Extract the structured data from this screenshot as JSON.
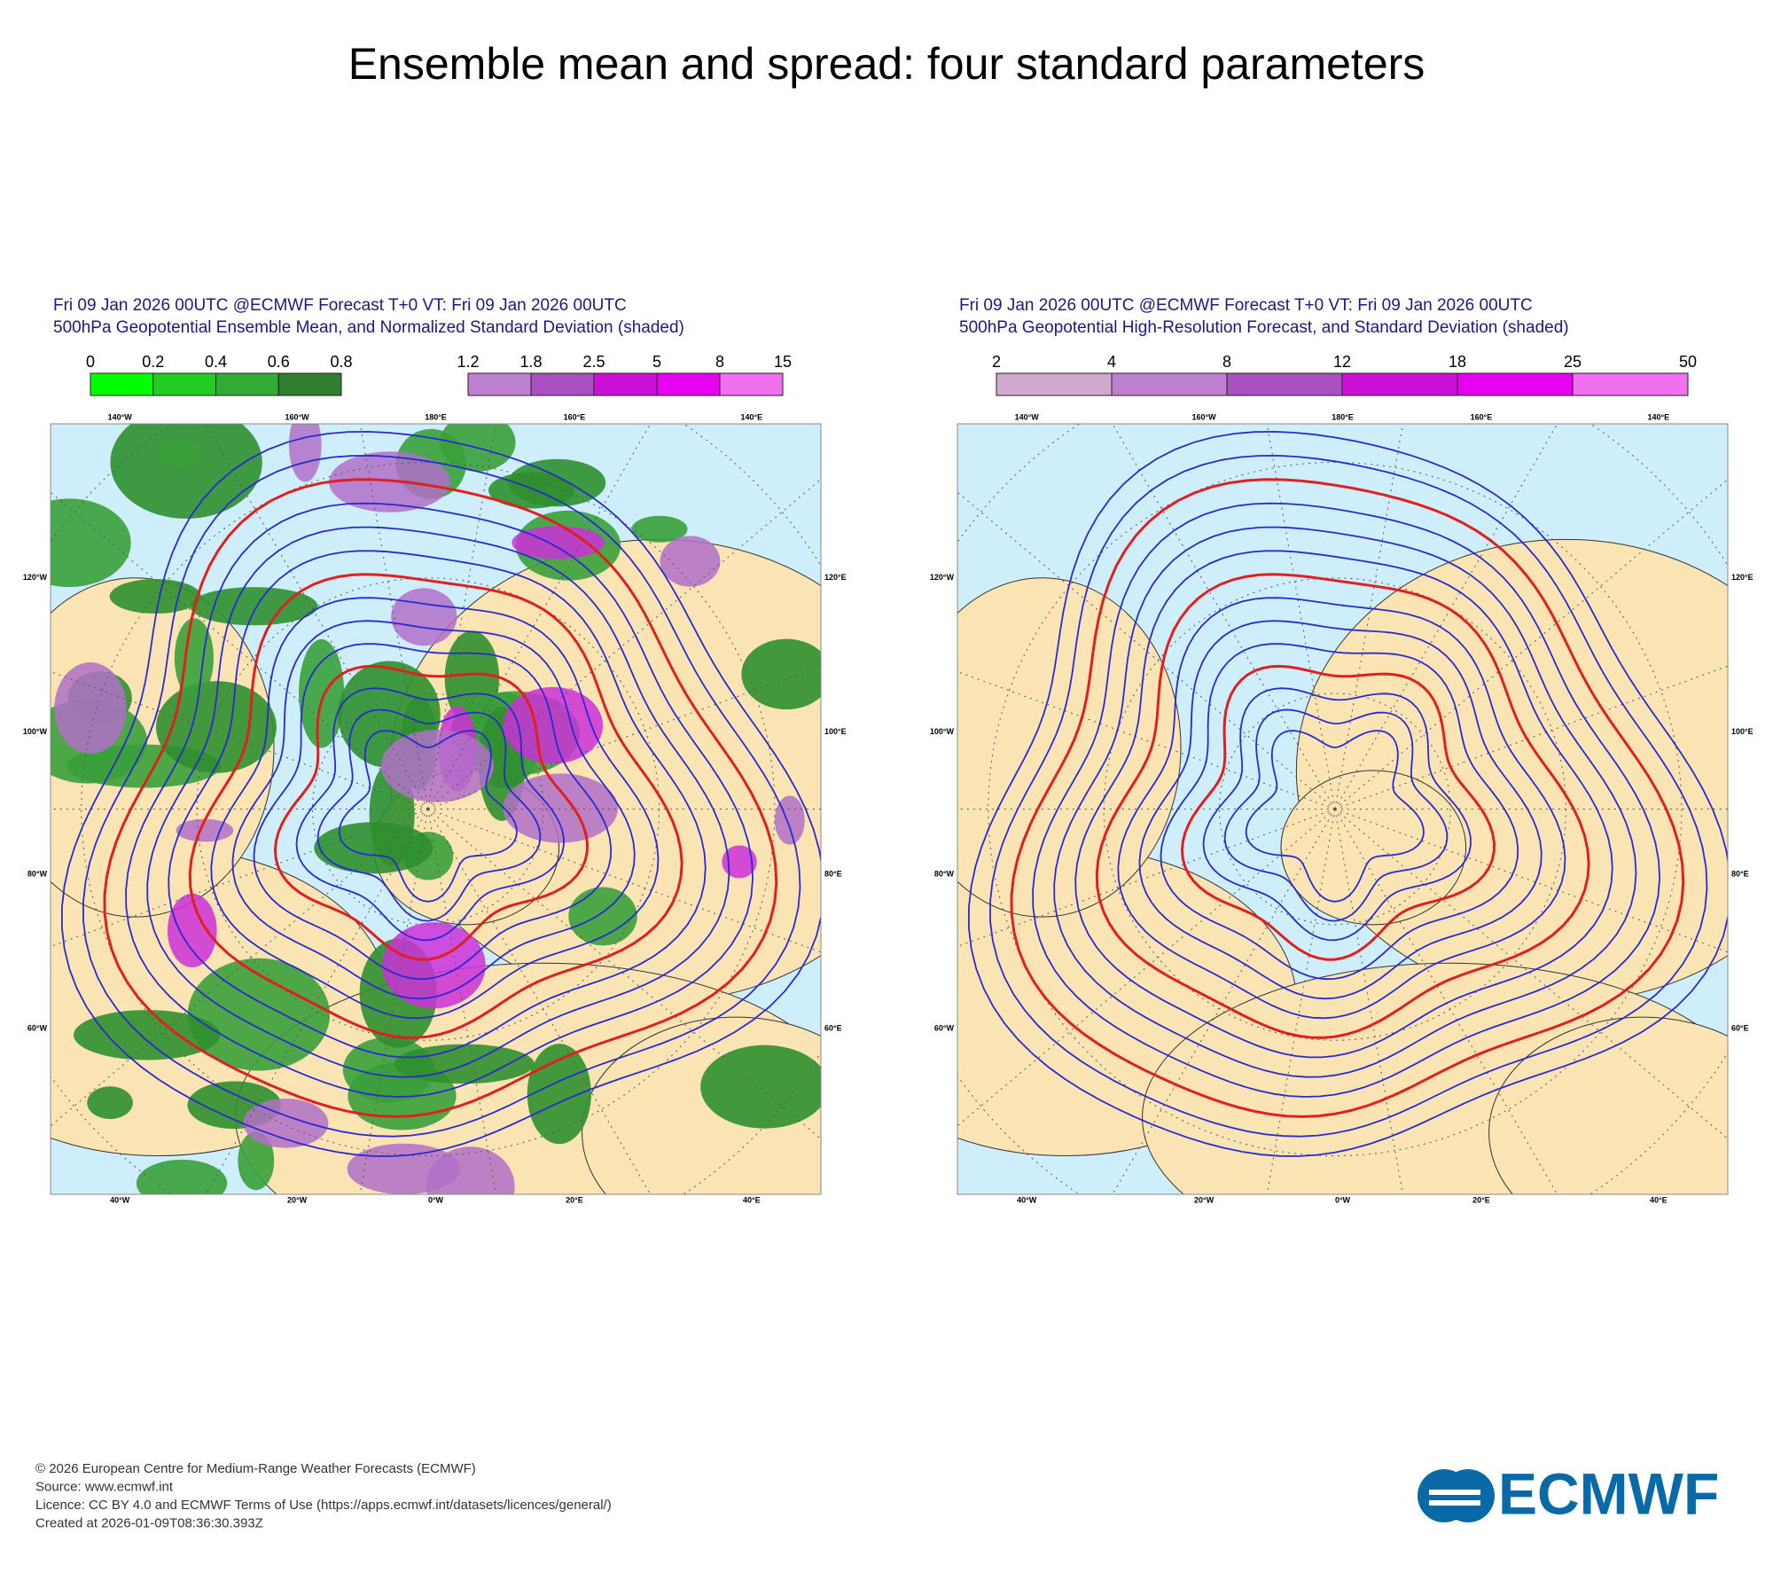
{
  "title": "Ensemble mean and spread: four standard parameters",
  "panels": [
    {
      "header": [
        "Fri 09 Jan 2026 00UTC @ECMWF Forecast T+0 VT: Fri 09 Jan 2026 00UTC",
        "500hPa Geopotential Ensemble Mean, and Normalized Standard Deviation (shaded)"
      ],
      "legends": [
        {
          "labels": [
            "0",
            "0.2",
            "0.4",
            "0.6",
            "0.8"
          ],
          "colors": [
            "#00ff00",
            "#22cc22",
            "#33aa33",
            "#2f7f2f"
          ]
        },
        {
          "labels": [
            "1.2",
            "1.8",
            "2.5",
            "5",
            "8",
            "15"
          ],
          "colors": [
            "#c080d0",
            "#a850c0",
            "#cc10d8",
            "#e800f0",
            "#f070f0"
          ]
        }
      ]
    },
    {
      "header": [
        "Fri 09 Jan 2026 00UTC @ECMWF Forecast T+0 VT: Fri 09 Jan 2026 00UTC",
        "500hPa Geopotential High-Resolution Forecast, and Standard Deviation (shaded)"
      ],
      "legends": [
        {
          "labels": [
            "2",
            "4",
            "8",
            "12",
            "18",
            "25",
            "50"
          ],
          "colors": [
            "#d0a8d0",
            "#c080d0",
            "#a850c0",
            "#cc10d8",
            "#e800f0",
            "#f070f0"
          ]
        }
      ]
    }
  ],
  "grid_labels": {
    "top": [
      "140°W",
      "160°W",
      "180°E",
      "160°E",
      "140°E"
    ],
    "left": [
      "120°W",
      "100°W",
      "80°W",
      "60°W"
    ],
    "right": [
      "120°E",
      "100°E",
      "80°E",
      "60°E"
    ],
    "bottom": [
      "40°W",
      "20°W",
      "0°W",
      "20°E",
      "40°E"
    ]
  },
  "footer": [
    "© 2026 European Centre for Medium-Range Weather Forecasts (ECMWF)",
    "Source: www.ecmwf.int",
    "Licence: CC BY 4.0 and ECMWF Terms of Use (https://apps.ecmwf.int/datasets/licences/general/)",
    "Created at 2026-01-09T08:36:30.393Z"
  ],
  "logo": "ECMWF"
}
